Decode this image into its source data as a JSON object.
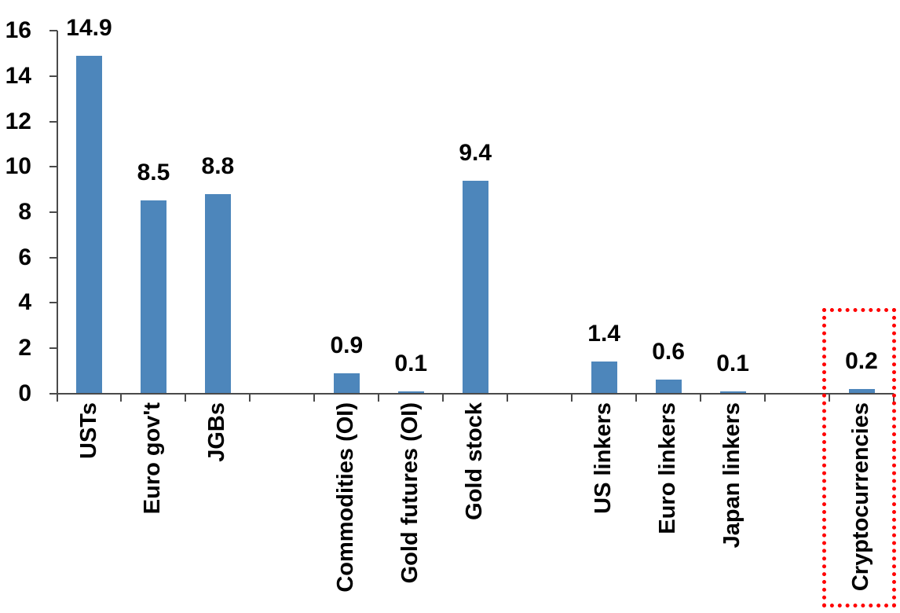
{
  "chart_data": {
    "type": "bar",
    "title": "",
    "xlabel": "",
    "ylabel": "",
    "categories": [
      "USTs",
      "Euro gov't",
      "JGBs",
      "",
      "Commodities (OI)",
      "Gold futures (OI)",
      "Gold stock",
      "",
      "US linkers",
      "Euro linkers",
      "Japan linkers",
      "",
      "Cryptocurrencies"
    ],
    "values": [
      14.9,
      8.5,
      8.8,
      null,
      0.9,
      0.1,
      9.4,
      null,
      1.4,
      0.6,
      0.1,
      null,
      0.2
    ],
    "data_labels": [
      "14.9",
      "8.5",
      "8.8",
      null,
      "0.9",
      "0.1",
      "9.4",
      null,
      "1.4",
      "0.6",
      "0.1",
      null,
      "0.2"
    ],
    "ylim": [
      0,
      16
    ],
    "yticks": [
      0,
      2,
      4,
      6,
      8,
      10,
      12,
      14,
      16
    ],
    "ytick_labels": [
      "0",
      "2",
      "4",
      "6",
      "8",
      "10",
      "12",
      "14",
      "16"
    ],
    "grid": false,
    "legend": false,
    "bar_color": "#4d86bb",
    "axis_color": "#4a4a4a",
    "label_color": "#000000",
    "highlight": {
      "category": "Cryptocurrencies",
      "shape": "red-dotted-rectangle",
      "color": "#ff0000"
    }
  }
}
